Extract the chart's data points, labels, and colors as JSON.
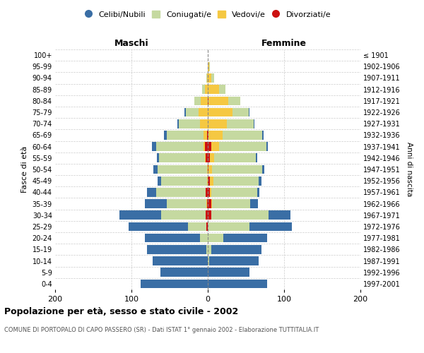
{
  "age_groups": [
    "0-4",
    "5-9",
    "10-14",
    "15-19",
    "20-24",
    "25-29",
    "30-34",
    "35-39",
    "40-44",
    "45-49",
    "50-54",
    "55-59",
    "60-64",
    "65-69",
    "70-74",
    "75-79",
    "80-84",
    "85-89",
    "90-94",
    "95-99",
    "100+"
  ],
  "birth_years": [
    "1997-2001",
    "1992-1996",
    "1987-1991",
    "1982-1986",
    "1977-1981",
    "1972-1976",
    "1967-1971",
    "1962-1966",
    "1957-1961",
    "1952-1956",
    "1947-1951",
    "1942-1946",
    "1937-1941",
    "1932-1936",
    "1927-1931",
    "1922-1926",
    "1917-1921",
    "1912-1916",
    "1907-1911",
    "1902-1906",
    "≤ 1901"
  ],
  "colors": {
    "celibe": "#3a6ea5",
    "coniugato": "#c5d9a0",
    "vedovo": "#f5c842",
    "divorziato": "#cc1111"
  },
  "maschi": {
    "celibe": [
      88,
      62,
      72,
      78,
      72,
      78,
      55,
      28,
      12,
      5,
      5,
      3,
      5,
      3,
      2,
      2,
      0,
      0,
      0,
      0,
      0
    ],
    "coniugato": [
      0,
      0,
      0,
      2,
      10,
      24,
      58,
      52,
      65,
      60,
      65,
      60,
      62,
      48,
      28,
      17,
      9,
      3,
      1,
      0,
      0
    ],
    "vedovo": [
      0,
      0,
      0,
      0,
      0,
      0,
      0,
      1,
      0,
      1,
      1,
      1,
      2,
      5,
      10,
      12,
      9,
      4,
      1,
      0,
      0
    ],
    "divorziato": [
      0,
      0,
      0,
      0,
      0,
      2,
      3,
      1,
      3,
      0,
      0,
      3,
      4,
      1,
      0,
      0,
      0,
      0,
      0,
      0,
      0
    ]
  },
  "femmine": {
    "nubile": [
      78,
      55,
      65,
      65,
      58,
      55,
      28,
      10,
      3,
      3,
      3,
      2,
      2,
      2,
      1,
      1,
      0,
      0,
      0,
      0,
      0
    ],
    "coniugata": [
      0,
      0,
      2,
      5,
      20,
      55,
      75,
      50,
      60,
      60,
      65,
      55,
      62,
      52,
      35,
      22,
      16,
      8,
      3,
      1,
      0
    ],
    "vedova": [
      0,
      0,
      0,
      0,
      0,
      0,
      0,
      1,
      2,
      4,
      5,
      5,
      10,
      18,
      25,
      32,
      26,
      15,
      5,
      2,
      0
    ],
    "divorziata": [
      0,
      0,
      0,
      0,
      0,
      0,
      5,
      5,
      3,
      3,
      1,
      3,
      5,
      1,
      0,
      0,
      1,
      0,
      0,
      0,
      0
    ]
  },
  "title": "Popolazione per età, sesso e stato civile - 2002",
  "subtitle": "COMUNE DI PORTOPALO DI CAPO PASSERO (SR) - Dati ISTAT 1° gennaio 2002 - Elaborazione TUTTITALIA.IT",
  "xlabel_left": "Maschi",
  "xlabel_right": "Femmine",
  "ylabel_left": "Fasce di età",
  "ylabel_right": "Anni di nascita",
  "xlim": 200,
  "legend_labels": [
    "Celibi/Nubili",
    "Coniugati/e",
    "Vedovi/e",
    "Divorziati/e"
  ]
}
